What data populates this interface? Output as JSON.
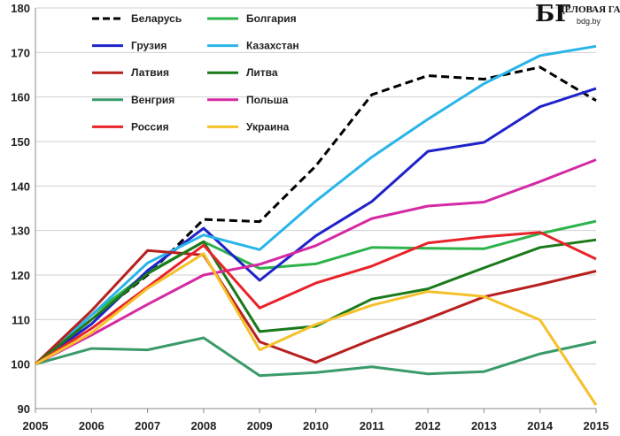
{
  "chart_data": {
    "type": "line",
    "x": [
      2005,
      2006,
      2007,
      2008,
      2009,
      2010,
      2011,
      2012,
      2013,
      2014,
      2015
    ],
    "x_labels": [
      "2005",
      "2006",
      "2007",
      "2008",
      "2009",
      "2010",
      "2011",
      "2012",
      "2013",
      "2014",
      "2015"
    ],
    "ylim": [
      90,
      180
    ],
    "y_ticks": [
      90,
      100,
      110,
      120,
      130,
      140,
      150,
      160,
      170,
      180
    ],
    "y_labels": [
      "90",
      "100",
      "110",
      "120",
      "130",
      "140",
      "150",
      "160",
      "170",
      "180"
    ],
    "grid": "horizontal",
    "legend_position": "top-left",
    "series": [
      {
        "name": "Беларусь",
        "color": "#000000",
        "dashed": true,
        "values": [
          100,
          110,
          120,
          132.5,
          132,
          144.5,
          160.5,
          164.8,
          164,
          166.7,
          159.2
        ]
      },
      {
        "name": "Болгария",
        "color": "#2db34a",
        "dashed": false,
        "values": [
          100,
          111,
          120.5,
          127.5,
          121.5,
          122.5,
          126.2,
          126,
          125.9,
          129.3,
          132.1
        ]
      },
      {
        "name": "Грузия",
        "color": "#1f22c8",
        "dashed": false,
        "values": [
          100,
          109,
          121,
          130.5,
          118.8,
          128.8,
          136.5,
          147.8,
          149.8,
          157.8,
          161.9
        ]
      },
      {
        "name": "Казахстан",
        "color": "#29b5e8",
        "dashed": false,
        "values": [
          100,
          111,
          122.7,
          129,
          125.7,
          136.6,
          146.5,
          155,
          163,
          169.3,
          171.4
        ]
      },
      {
        "name": "Латвия",
        "color": "#b8201f",
        "dashed": false,
        "values": [
          100,
          112,
          125.5,
          124.5,
          105,
          100.4,
          105.5,
          110.2,
          115.1,
          117.9,
          120.9
        ]
      },
      {
        "name": "Литва",
        "color": "#1a7a1a",
        "dashed": false,
        "values": [
          100,
          110,
          120.3,
          127.5,
          107.3,
          108.5,
          114.6,
          116.9,
          121.6,
          126.2,
          127.9
        ]
      },
      {
        "name": "Венгрия",
        "color": "#3a9a6a",
        "dashed": false,
        "values": [
          100,
          103.5,
          103.2,
          105.9,
          97.4,
          98.1,
          99.4,
          97.8,
          98.3,
          102.3,
          105
        ]
      },
      {
        "name": "Польша",
        "color": "#d42aa3",
        "dashed": false,
        "values": [
          100,
          106.5,
          113.4,
          120,
          122.4,
          126.6,
          132.7,
          135.5,
          136.4,
          141,
          145.9
        ]
      },
      {
        "name": "Россия",
        "color": "#e8232a",
        "dashed": false,
        "values": [
          100,
          108,
          117.3,
          126.7,
          112.6,
          118.2,
          122,
          127.2,
          128.6,
          129.6,
          123.6
        ]
      },
      {
        "name": "Украина",
        "color": "#f5c12a",
        "dashed": false,
        "values": [
          100,
          107,
          117,
          124.8,
          103.2,
          108.9,
          113.2,
          116.3,
          115.2,
          109.9,
          90.8
        ]
      }
    ]
  },
  "logo": {
    "mark": "БГ",
    "name": "ДЕЛОВАЯ ГАЗЕТА",
    "url": "bdg.by"
  }
}
